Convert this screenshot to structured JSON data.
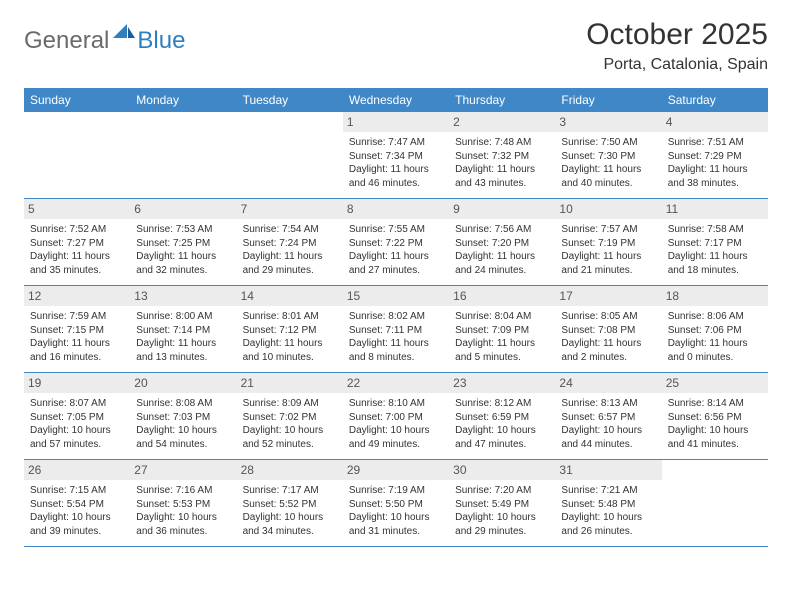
{
  "logo": {
    "general": "General",
    "blue": "Blue"
  },
  "title": "October 2025",
  "location": "Porta, Catalonia, Spain",
  "colors": {
    "header_bg": "#3f87c7",
    "header_text": "#ffffff",
    "daynum_bg": "#ececec",
    "daynum_text": "#555555",
    "body_text": "#333333",
    "divider": "#3f87c7",
    "logo_gray": "#6a6a6a",
    "logo_blue": "#2f7fbf"
  },
  "daynames": [
    "Sunday",
    "Monday",
    "Tuesday",
    "Wednesday",
    "Thursday",
    "Friday",
    "Saturday"
  ],
  "blanks_before": 3,
  "days": [
    {
      "n": 1,
      "sunrise": "7:47 AM",
      "sunset": "7:34 PM",
      "dl_h": 11,
      "dl_m": 46
    },
    {
      "n": 2,
      "sunrise": "7:48 AM",
      "sunset": "7:32 PM",
      "dl_h": 11,
      "dl_m": 43
    },
    {
      "n": 3,
      "sunrise": "7:50 AM",
      "sunset": "7:30 PM",
      "dl_h": 11,
      "dl_m": 40
    },
    {
      "n": 4,
      "sunrise": "7:51 AM",
      "sunset": "7:29 PM",
      "dl_h": 11,
      "dl_m": 38
    },
    {
      "n": 5,
      "sunrise": "7:52 AM",
      "sunset": "7:27 PM",
      "dl_h": 11,
      "dl_m": 35
    },
    {
      "n": 6,
      "sunrise": "7:53 AM",
      "sunset": "7:25 PM",
      "dl_h": 11,
      "dl_m": 32
    },
    {
      "n": 7,
      "sunrise": "7:54 AM",
      "sunset": "7:24 PM",
      "dl_h": 11,
      "dl_m": 29
    },
    {
      "n": 8,
      "sunrise": "7:55 AM",
      "sunset": "7:22 PM",
      "dl_h": 11,
      "dl_m": 27
    },
    {
      "n": 9,
      "sunrise": "7:56 AM",
      "sunset": "7:20 PM",
      "dl_h": 11,
      "dl_m": 24
    },
    {
      "n": 10,
      "sunrise": "7:57 AM",
      "sunset": "7:19 PM",
      "dl_h": 11,
      "dl_m": 21
    },
    {
      "n": 11,
      "sunrise": "7:58 AM",
      "sunset": "7:17 PM",
      "dl_h": 11,
      "dl_m": 18
    },
    {
      "n": 12,
      "sunrise": "7:59 AM",
      "sunset": "7:15 PM",
      "dl_h": 11,
      "dl_m": 16
    },
    {
      "n": 13,
      "sunrise": "8:00 AM",
      "sunset": "7:14 PM",
      "dl_h": 11,
      "dl_m": 13
    },
    {
      "n": 14,
      "sunrise": "8:01 AM",
      "sunset": "7:12 PM",
      "dl_h": 11,
      "dl_m": 10
    },
    {
      "n": 15,
      "sunrise": "8:02 AM",
      "sunset": "7:11 PM",
      "dl_h": 11,
      "dl_m": 8
    },
    {
      "n": 16,
      "sunrise": "8:04 AM",
      "sunset": "7:09 PM",
      "dl_h": 11,
      "dl_m": 5
    },
    {
      "n": 17,
      "sunrise": "8:05 AM",
      "sunset": "7:08 PM",
      "dl_h": 11,
      "dl_m": 2
    },
    {
      "n": 18,
      "sunrise": "8:06 AM",
      "sunset": "7:06 PM",
      "dl_h": 11,
      "dl_m": 0
    },
    {
      "n": 19,
      "sunrise": "8:07 AM",
      "sunset": "7:05 PM",
      "dl_h": 10,
      "dl_m": 57
    },
    {
      "n": 20,
      "sunrise": "8:08 AM",
      "sunset": "7:03 PM",
      "dl_h": 10,
      "dl_m": 54
    },
    {
      "n": 21,
      "sunrise": "8:09 AM",
      "sunset": "7:02 PM",
      "dl_h": 10,
      "dl_m": 52
    },
    {
      "n": 22,
      "sunrise": "8:10 AM",
      "sunset": "7:00 PM",
      "dl_h": 10,
      "dl_m": 49
    },
    {
      "n": 23,
      "sunrise": "8:12 AM",
      "sunset": "6:59 PM",
      "dl_h": 10,
      "dl_m": 47
    },
    {
      "n": 24,
      "sunrise": "8:13 AM",
      "sunset": "6:57 PM",
      "dl_h": 10,
      "dl_m": 44
    },
    {
      "n": 25,
      "sunrise": "8:14 AM",
      "sunset": "6:56 PM",
      "dl_h": 10,
      "dl_m": 41
    },
    {
      "n": 26,
      "sunrise": "7:15 AM",
      "sunset": "5:54 PM",
      "dl_h": 10,
      "dl_m": 39
    },
    {
      "n": 27,
      "sunrise": "7:16 AM",
      "sunset": "5:53 PM",
      "dl_h": 10,
      "dl_m": 36
    },
    {
      "n": 28,
      "sunrise": "7:17 AM",
      "sunset": "5:52 PM",
      "dl_h": 10,
      "dl_m": 34
    },
    {
      "n": 29,
      "sunrise": "7:19 AM",
      "sunset": "5:50 PM",
      "dl_h": 10,
      "dl_m": 31
    },
    {
      "n": 30,
      "sunrise": "7:20 AM",
      "sunset": "5:49 PM",
      "dl_h": 10,
      "dl_m": 29
    },
    {
      "n": 31,
      "sunrise": "7:21 AM",
      "sunset": "5:48 PM",
      "dl_h": 10,
      "dl_m": 26
    }
  ],
  "labels": {
    "sunrise": "Sunrise:",
    "sunset": "Sunset:",
    "daylight": "Daylight:",
    "hours": "hours",
    "and": "and",
    "minutes": "minutes."
  }
}
